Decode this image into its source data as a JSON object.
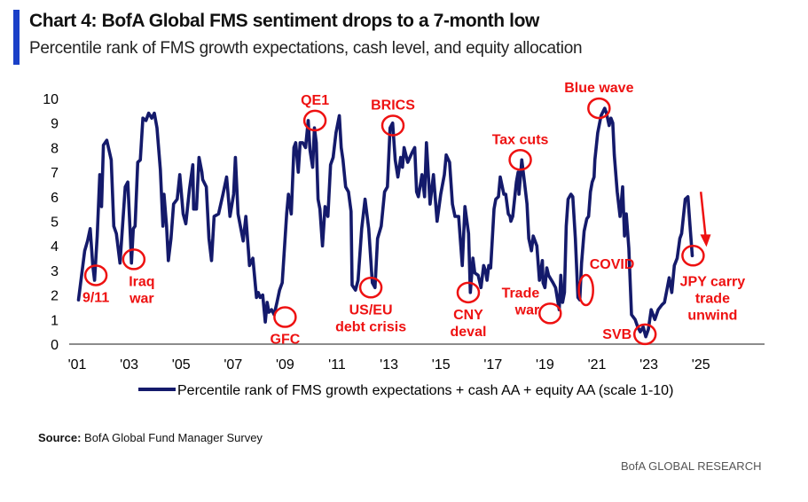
{
  "header": {
    "title": "Chart 4: BofA Global FMS sentiment drops to a 7-month low",
    "subtitle": "Percentile rank of FMS growth expectations, cash level, and equity allocation",
    "accent_color": "#1a40c8"
  },
  "source": {
    "label": "Source:",
    "text": "BofA Global Fund Manager Survey"
  },
  "footer": "BofA GLOBAL RESEARCH",
  "chart_data": {
    "type": "line",
    "title": "Chart 4: BofA Global FMS sentiment drops to a 7-month low",
    "subtitle": "Percentile rank of FMS growth expectations, cash level, and equity allocation",
    "xlabel": "",
    "ylabel": "",
    "ylim": [
      0,
      10
    ],
    "xlim": [
      2001,
      2027.5
    ],
    "yticks": [
      "0",
      "1",
      "2",
      "3",
      "4",
      "5",
      "6",
      "7",
      "8",
      "9",
      "10"
    ],
    "xticks": [
      {
        "year": 2001,
        "label": "'01"
      },
      {
        "year": 2003,
        "label": "'03"
      },
      {
        "year": 2005,
        "label": "'05"
      },
      {
        "year": 2007,
        "label": "'07"
      },
      {
        "year": 2009,
        "label": "'09"
      },
      {
        "year": 2011,
        "label": "'11"
      },
      {
        "year": 2013,
        "label": "'13"
      },
      {
        "year": 2015,
        "label": "'15"
      },
      {
        "year": 2017,
        "label": "'17"
      },
      {
        "year": 2019,
        "label": "'19"
      },
      {
        "year": 2021,
        "label": "'21"
      },
      {
        "year": 2023,
        "label": "'23"
      },
      {
        "year": 2025,
        "label": "'25"
      }
    ],
    "grid": false,
    "legend_position": "bottom-center",
    "series": [
      {
        "name": "Percentile rank of FMS growth expectations + cash AA + equity AA (scale 1-10)",
        "color": "#141a6b",
        "x": [
          2001.05,
          2001.29,
          2001.4,
          2001.5,
          2001.6,
          2001.67,
          2001.77,
          2001.87,
          2001.94,
          2002.01,
          2002.14,
          2002.31,
          2002.41,
          2002.51,
          2002.65,
          2002.85,
          2002.95,
          2003.05,
          2003.09,
          2003.16,
          2003.23,
          2003.33,
          2003.43,
          2003.53,
          2003.65,
          2003.75,
          2003.87,
          2003.97,
          2004.07,
          2004.2,
          2004.3,
          2004.34,
          2004.44,
          2004.51,
          2004.61,
          2004.71,
          2004.85,
          2004.95,
          2005.08,
          2005.18,
          2005.32,
          2005.45,
          2005.48,
          2005.59,
          2005.69,
          2005.8,
          2005.83,
          2005.97,
          2006.07,
          2006.17,
          2006.27,
          2006.44,
          2006.61,
          2006.75,
          2006.88,
          2007.02,
          2007.09,
          2007.19,
          2007.39,
          2007.49,
          2007.59,
          2007.63,
          2007.76,
          2007.9,
          2007.97,
          2008.04,
          2008.14,
          2008.24,
          2008.31,
          2008.38,
          2008.48,
          2008.58,
          2008.69,
          2008.79,
          2008.89,
          2009.06,
          2009.13,
          2009.24,
          2009.34,
          2009.41,
          2009.51,
          2009.58,
          2009.68,
          2009.79,
          2009.89,
          2009.96,
          2010.06,
          2010.13,
          2010.2,
          2010.27,
          2010.34,
          2010.44,
          2010.54,
          2010.65,
          2010.75,
          2010.85,
          2010.96,
          2011.09,
          2011.16,
          2011.23,
          2011.33,
          2011.44,
          2011.54,
          2011.58,
          2011.71,
          2011.81,
          2011.95,
          2012.08,
          2012.22,
          2012.36,
          2012.46,
          2012.56,
          2012.7,
          2012.83,
          2012.94,
          2013.04,
          2013.14,
          2013.24,
          2013.34,
          2013.45,
          2013.52,
          2013.58,
          2013.72,
          2013.89,
          2013.99,
          2014.06,
          2014.13,
          2014.27,
          2014.37,
          2014.44,
          2014.58,
          2014.71,
          2014.85,
          2014.99,
          2015.13,
          2015.2,
          2015.33,
          2015.44,
          2015.54,
          2015.68,
          2015.82,
          2015.92,
          2016.06,
          2016.13,
          2016.23,
          2016.3,
          2016.43,
          2016.54,
          2016.64,
          2016.71,
          2016.77,
          2016.84,
          2016.91,
          2017.04,
          2017.11,
          2017.21,
          2017.28,
          2017.42,
          2017.49,
          2017.59,
          2017.66,
          2017.69,
          2017.76,
          2017.9,
          2017.97,
          2018.0,
          2018.11,
          2018.21,
          2018.31,
          2018.38,
          2018.48,
          2018.55,
          2018.69,
          2018.79,
          2018.9,
          2018.93,
          2019.0,
          2019.07,
          2019.14,
          2019.31,
          2019.41,
          2019.55,
          2019.61,
          2019.68,
          2019.75,
          2019.82,
          2019.89,
          2020.0,
          2020.07,
          2020.17,
          2020.27,
          2020.34,
          2020.41,
          2020.51,
          2020.61,
          2020.68,
          2020.75,
          2020.82,
          2020.89,
          2020.92,
          2021.03,
          2021.16,
          2021.3,
          2021.37,
          2021.47,
          2021.54,
          2021.61,
          2021.67,
          2021.78,
          2021.89,
          2021.99,
          2022.06,
          2022.13,
          2022.23,
          2022.33,
          2022.47,
          2022.57,
          2022.67,
          2022.78,
          2022.88,
          2022.98,
          2023.09,
          2023.23,
          2023.36,
          2023.5,
          2023.6,
          2023.71,
          2023.78,
          2023.88,
          2023.98,
          2024.09,
          2024.19,
          2024.26,
          2024.4,
          2024.5,
          2024.57,
          2024.67
        ],
        "values": [
          1.8,
          3.8,
          4.2,
          4.7,
          3.2,
          2.6,
          4.4,
          6.9,
          5.6,
          8.1,
          8.3,
          7.5,
          4.8,
          4.5,
          3.3,
          6.4,
          6.6,
          4.3,
          3.3,
          4.7,
          4.8,
          7.4,
          7.5,
          9.2,
          9.1,
          9.4,
          9.2,
          9.4,
          8.8,
          7.1,
          4.8,
          6.1,
          4.8,
          3.4,
          4.3,
          5.7,
          5.9,
          6.9,
          5.3,
          4.9,
          6.3,
          7.3,
          5.5,
          5.5,
          7.6,
          7.0,
          6.7,
          6.4,
          4.3,
          3.4,
          5.2,
          5.3,
          6.1,
          6.8,
          5.2,
          6.1,
          7.6,
          5.3,
          4.2,
          5.2,
          3.8,
          3.2,
          3.5,
          1.9,
          2.1,
          1.9,
          2.0,
          0.9,
          1.7,
          1.3,
          1.4,
          1.2,
          1.7,
          2.2,
          2.5,
          5.3,
          6.1,
          5.3,
          8.0,
          8.2,
          7.0,
          8.2,
          8.2,
          8.0,
          9.1,
          7.9,
          7.2,
          8.8,
          8.2,
          5.9,
          5.5,
          4.0,
          5.6,
          5.2,
          7.3,
          7.6,
          8.6,
          9.3,
          8.0,
          7.5,
          6.4,
          6.2,
          5.4,
          2.4,
          2.2,
          2.6,
          4.7,
          5.9,
          4.7,
          2.5,
          2.3,
          4.3,
          4.8,
          6.2,
          6.4,
          8.8,
          9.0,
          7.5,
          6.8,
          7.6,
          7.2,
          8.0,
          7.4,
          7.8,
          8.0,
          6.2,
          6.0,
          6.9,
          6.0,
          8.2,
          5.7,
          6.9,
          5.0,
          6.1,
          6.9,
          7.7,
          7.4,
          5.7,
          5.2,
          5.2,
          3.2,
          5.6,
          4.5,
          2.1,
          3.5,
          2.9,
          2.8,
          2.3,
          3.2,
          3.0,
          2.6,
          3.2,
          3.1,
          5.5,
          5.9,
          6.0,
          6.8,
          6.1,
          6.1,
          5.3,
          5.2,
          5.0,
          5.2,
          6.6,
          7.0,
          6.1,
          7.5,
          6.6,
          5.7,
          4.3,
          3.8,
          4.4,
          4.0,
          2.6,
          3.4,
          2.5,
          2.3,
          3.1,
          2.8,
          2.5,
          2.3,
          1.4,
          2.8,
          1.7,
          2.1,
          4.8,
          5.9,
          6.1,
          6.0,
          4.3,
          1.9,
          1.8,
          3.3,
          4.6,
          5.1,
          5.2,
          6.2,
          6.6,
          6.8,
          7.5,
          8.6,
          9.3,
          9.6,
          9.4,
          8.9,
          9.2,
          9.0,
          7.7,
          6.2,
          5.2,
          6.4,
          4.4,
          5.3,
          3.9,
          1.2,
          1.0,
          0.7,
          0.5,
          0.7,
          0.3,
          0.6,
          1.4,
          1.0,
          1.4,
          1.6,
          1.7,
          2.3,
          2.7,
          2.1,
          3.2,
          3.5,
          4.3,
          4.5,
          5.9,
          6.0,
          5.0,
          3.6
        ]
      }
    ],
    "annotations": [
      {
        "label": "9/11",
        "x": 2001.72,
        "y": 2.8,
        "text_lines": [
          "9/11"
        ],
        "text_anchor": "below"
      },
      {
        "label": "Iraq war",
        "x": 2003.18,
        "y": 3.45,
        "text_lines": [
          "Iraq",
          "war"
        ],
        "text_anchor": "below"
      },
      {
        "label": "GFC",
        "x": 2009.0,
        "y": 1.1,
        "text_lines": [
          "GFC"
        ],
        "text_anchor": "below"
      },
      {
        "label": "QE1",
        "x": 2010.15,
        "y": 9.1,
        "text_lines": [
          "QE1"
        ],
        "text_anchor": "above"
      },
      {
        "label": "US/EU debt crisis",
        "x": 2012.3,
        "y": 2.3,
        "text_lines": [
          "US/EU",
          "debt crisis"
        ],
        "text_anchor": "below"
      },
      {
        "label": "BRICS",
        "x": 2013.15,
        "y": 8.9,
        "text_lines": [
          "BRICS"
        ],
        "text_anchor": "above"
      },
      {
        "label": "CNY deval",
        "x": 2016.05,
        "y": 2.1,
        "text_lines": [
          "CNY",
          "deval"
        ],
        "text_anchor": "below"
      },
      {
        "label": "Tax cuts",
        "x": 2018.05,
        "y": 7.5,
        "text_lines": [
          "Tax cuts"
        ],
        "text_anchor": "above"
      },
      {
        "label": "Trade war",
        "x": 2019.2,
        "y": 1.25,
        "text_lines": [
          "Trade",
          "war"
        ],
        "text_anchor": "left"
      },
      {
        "label": "COVID",
        "x": 2020.58,
        "y": 2.2,
        "text_lines": [
          "COVID"
        ],
        "text_anchor": "right"
      },
      {
        "label": "Blue wave",
        "x": 2021.08,
        "y": 9.6,
        "text_lines": [
          "Blue wave"
        ],
        "text_anchor": "above"
      },
      {
        "label": "SVB",
        "x": 2022.85,
        "y": 0.4,
        "text_lines": [
          "SVB"
        ],
        "text_anchor": "left"
      },
      {
        "label": "JPY carry trade unwind",
        "x": 2024.7,
        "y": 3.6,
        "text_lines": [
          "JPY carry",
          "trade",
          "unwind"
        ],
        "text_anchor": "below"
      }
    ],
    "arrow": {
      "from": {
        "x": 2025.0,
        "y": 6.2
      },
      "to": {
        "x": 2025.18,
        "y": 4.1
      },
      "color": "#ee1111"
    },
    "annotation_color": "#ee1111"
  }
}
